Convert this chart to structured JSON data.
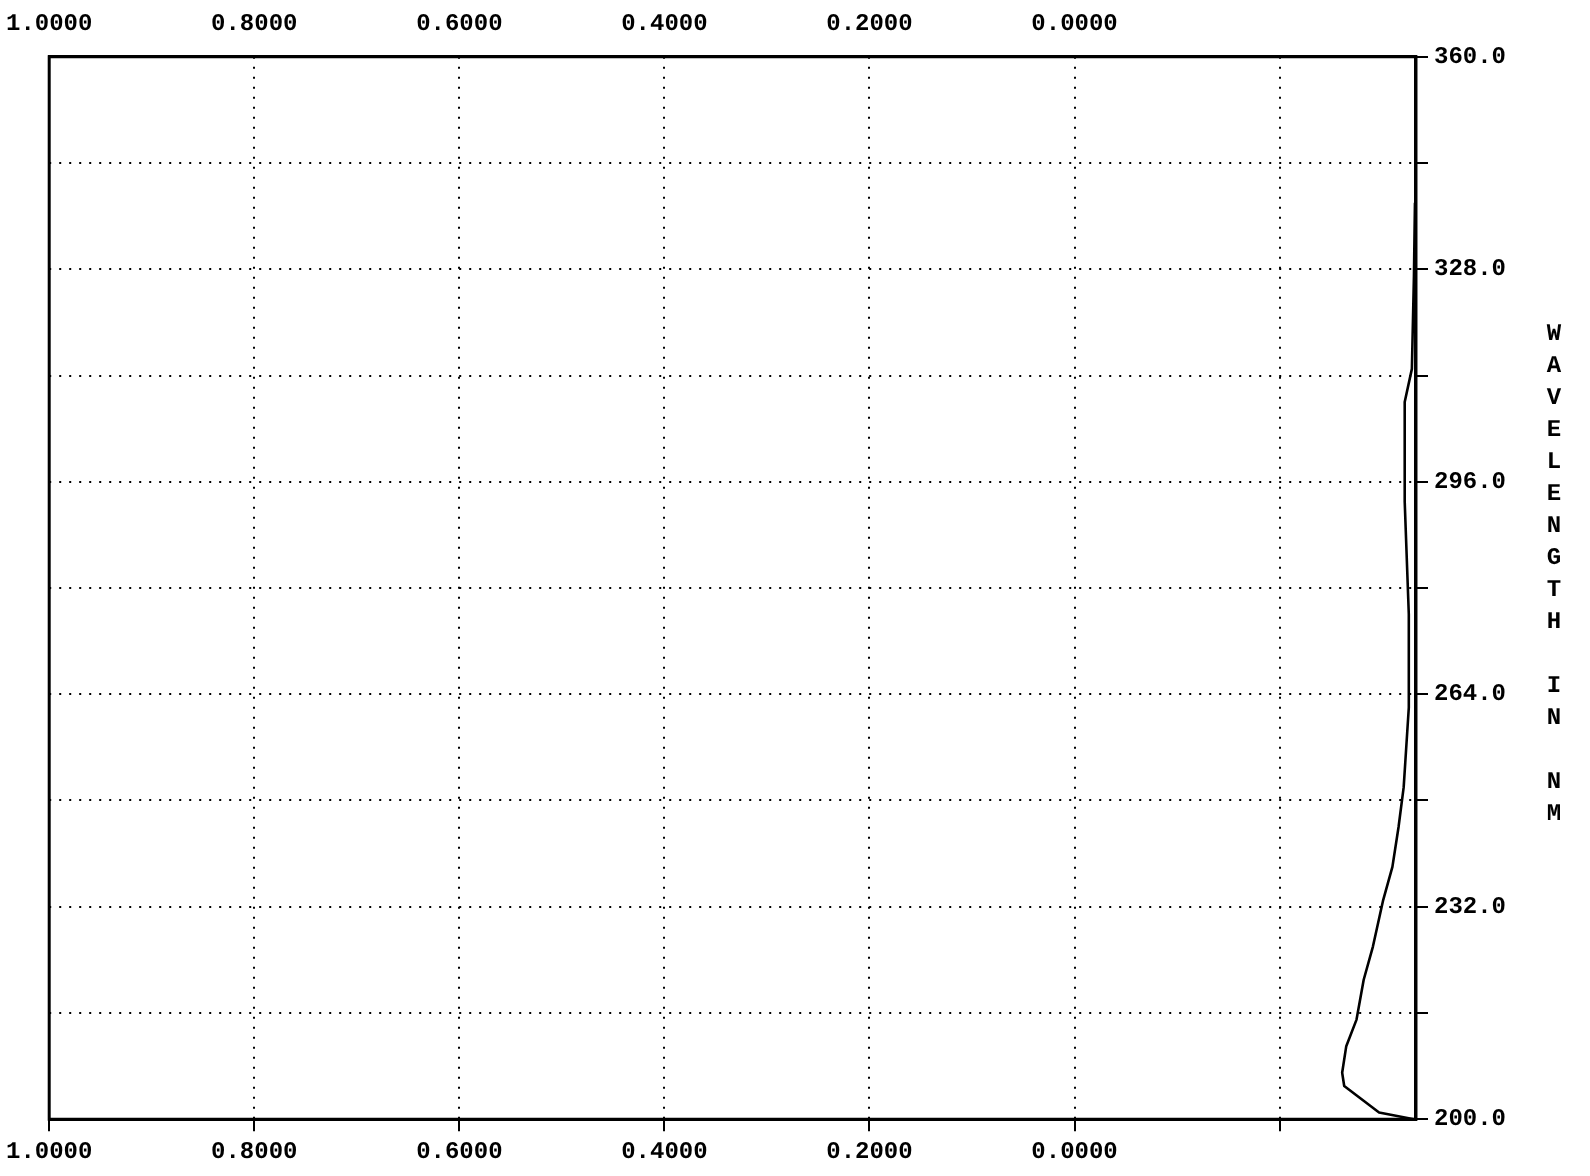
{
  "chart_data": {
    "type": "line",
    "ylabel": "WAVELENGTH IN NM",
    "xlim": [
      1.0,
      -0.333
    ],
    "ylim": [
      200,
      360
    ],
    "xticks": [
      {
        "value": 1.0,
        "label": "1.0000"
      },
      {
        "value": 0.8,
        "label": "0.8000"
      },
      {
        "value": 0.6,
        "label": "0.6000"
      },
      {
        "value": 0.4,
        "label": "0.4000"
      },
      {
        "value": 0.2,
        "label": "0.2000"
      },
      {
        "value": 0.0,
        "label": "0.0000"
      },
      {
        "value": -0.2,
        "label": null
      }
    ],
    "x2lim": [
      1.0,
      -0.333
    ],
    "x2ticks": [
      {
        "value": 1.0,
        "label": "1.0000"
      },
      {
        "value": 0.8,
        "label": "0.8000"
      },
      {
        "value": 0.6,
        "label": "0.6000"
      },
      {
        "value": 0.4,
        "label": "0.4000"
      },
      {
        "value": 0.2,
        "label": "0.2000"
      },
      {
        "value": 0.0,
        "label": "0.0000"
      },
      {
        "value": -0.2,
        "label": null
      }
    ],
    "yticks": [
      {
        "value": 200,
        "label": "200.0"
      },
      {
        "value": 216,
        "label": null
      },
      {
        "value": 232,
        "label": "232.0"
      },
      {
        "value": 248,
        "label": null
      },
      {
        "value": 264,
        "label": "264.0"
      },
      {
        "value": 280,
        "label": null
      },
      {
        "value": 296,
        "label": "296.0"
      },
      {
        "value": 312,
        "label": null
      },
      {
        "value": 328,
        "label": "328.0"
      },
      {
        "value": 344,
        "label": null
      },
      {
        "value": 360,
        "label": "360.0"
      }
    ],
    "grid": true,
    "legend": false,
    "marker": "none",
    "line_style": "solid",
    "series": [
      {
        "color": "#000000",
        "x": [
          -0.331,
          -0.297,
          -0.263,
          -0.261,
          -0.265,
          -0.275,
          -0.282,
          -0.291,
          -0.301,
          -0.31,
          -0.316,
          -0.321,
          -0.326,
          -0.326,
          -0.322,
          -0.322,
          -0.329,
          -0.331,
          -0.332
        ],
        "values": [
          200,
          201,
          205,
          207,
          211,
          215,
          221,
          226,
          233,
          238,
          244,
          250,
          262,
          276,
          293,
          308,
          313,
          327,
          338
        ]
      }
    ]
  }
}
